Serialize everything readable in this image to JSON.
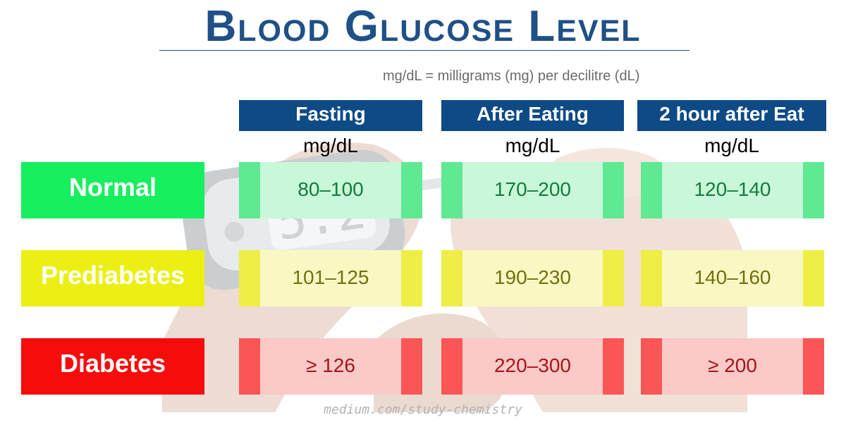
{
  "title": "Blood Glucose Level",
  "units_note": "mg/dL = milligrams (mg) per decilitre (dL)",
  "columns": [
    {
      "label": "Fasting",
      "unit": "mg/dL"
    },
    {
      "label": "After Eating",
      "unit": "mg/dL"
    },
    {
      "label": "2 hour after Eat",
      "unit": "mg/dL"
    }
  ],
  "rows": [
    {
      "label": "Normal",
      "values": [
        "80–100",
        "170–200",
        "120–140"
      ],
      "colors": {
        "label_bg": "#16ef5e",
        "cell_bg": "#c9f7d9",
        "edge": "#5ee992",
        "text": "#127c3d"
      }
    },
    {
      "label": "Prediabetes",
      "values": [
        "101–125",
        "190–230",
        "140–160"
      ],
      "colors": {
        "label_bg": "#ecef14",
        "cell_bg": "#f9f8c2",
        "edge": "#eeee47",
        "text": "#746f12"
      }
    },
    {
      "label": "Diabetes",
      "values": [
        "≥ 126",
        "220–300",
        "≥ 200"
      ],
      "colors": {
        "label_bg": "#f70c0c",
        "cell_bg": "#fbc9c7",
        "edge": "#fa5656",
        "text": "#a5151a"
      }
    }
  ],
  "watermark": "medium.com/study-chemistry",
  "colors": {
    "header_bg": "#0e4a85",
    "title": "#1f5087"
  },
  "background_image": "glucose-meter-photo"
}
